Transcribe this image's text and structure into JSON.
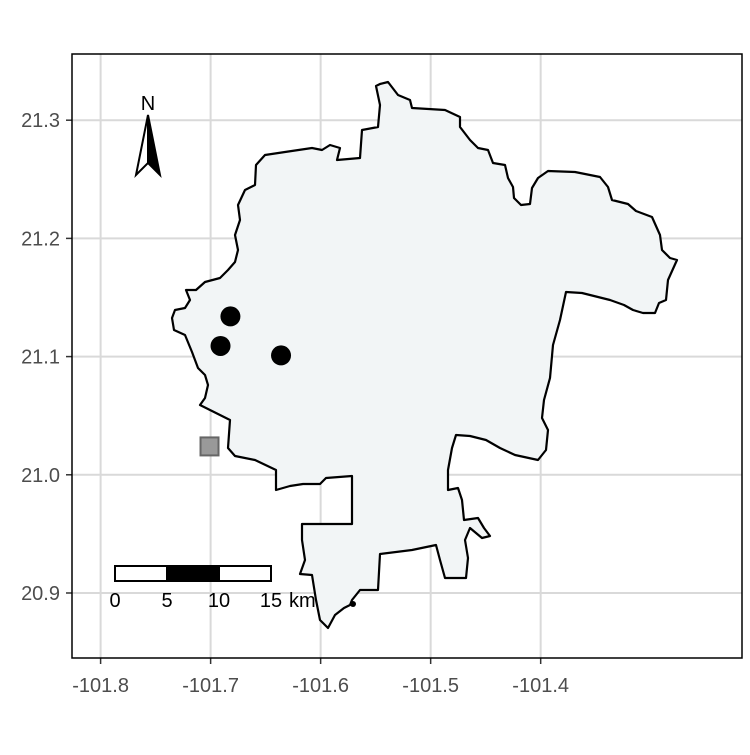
{
  "map": {
    "x_ticks": [
      {
        "value": -101.8,
        "label": "-101.8"
      },
      {
        "value": -101.7,
        "label": "-101.7"
      },
      {
        "value": -101.6,
        "label": "-101.6"
      },
      {
        "value": -101.5,
        "label": "-101.5"
      },
      {
        "value": -101.4,
        "label": "-101.4"
      }
    ],
    "y_ticks": [
      {
        "value": 21.3,
        "label": "21.3"
      },
      {
        "value": 21.2,
        "label": "21.2"
      },
      {
        "value": 21.1,
        "label": "21.1"
      },
      {
        "value": 21.0,
        "label": "21.0"
      },
      {
        "value": 20.9,
        "label": "20.9"
      }
    ],
    "x_range": [
      -101.826,
      -101.217
    ],
    "y_range": [
      20.845,
      21.356
    ],
    "grid": true,
    "north_arrow": {
      "label": "N",
      "placement": "top-left"
    },
    "scale_bar": {
      "labels": [
        "0",
        "5",
        "10",
        "15"
      ],
      "unit": "km",
      "placement": "bottom-left"
    },
    "points": [
      {
        "lon": -101.682,
        "lat": 21.134,
        "shape": "circle",
        "color": "#000000"
      },
      {
        "lon": -101.691,
        "lat": 21.109,
        "shape": "circle",
        "color": "#000000"
      },
      {
        "lon": -101.636,
        "lat": 21.101,
        "shape": "circle",
        "color": "#000000"
      },
      {
        "lon": -101.701,
        "lat": 21.024,
        "shape": "square",
        "color": "#999999"
      }
    ],
    "colors": {
      "region_fill": "#f2f5f6",
      "region_stroke": "#000000",
      "grid": "#d9d9d9",
      "panel_border": "#000000"
    }
  }
}
